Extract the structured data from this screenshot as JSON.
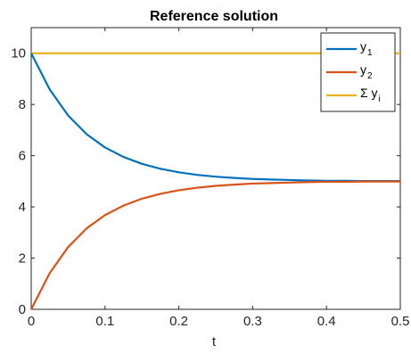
{
  "chart_data": {
    "type": "line",
    "title": "Reference solution",
    "xlabel": "t",
    "ylabel": "",
    "xlim": [
      0,
      0.5
    ],
    "ylim": [
      0,
      11
    ],
    "xticks": [
      0,
      0.1,
      0.2,
      0.3,
      0.4,
      0.5
    ],
    "xtick_labels": [
      "0",
      "0.1",
      "0.2",
      "0.3",
      "0.4",
      "0.5"
    ],
    "yticks": [
      0,
      2,
      4,
      6,
      8,
      10
    ],
    "ytick_labels": [
      "0",
      "2",
      "4",
      "6",
      "8",
      "10"
    ],
    "grid": false,
    "legend_position": "top-right",
    "x": [
      0,
      0.025,
      0.05,
      0.075,
      0.1,
      0.125,
      0.15,
      0.175,
      0.2,
      0.225,
      0.25,
      0.275,
      0.3,
      0.325,
      0.35,
      0.375,
      0.4,
      0.425,
      0.45,
      0.475,
      0.5
    ],
    "series": [
      {
        "name": "y1",
        "legend_main": "y",
        "legend_sub": "1",
        "color": "#0072BD",
        "values": [
          10,
          8.59,
          7.57,
          6.84,
          6.32,
          5.95,
          5.68,
          5.49,
          5.35,
          5.25,
          5.18,
          5.13,
          5.09,
          5.07,
          5.05,
          5.03,
          5.02,
          5.02,
          5.01,
          5.01,
          5.01
        ]
      },
      {
        "name": "y2",
        "legend_main": "y",
        "legend_sub": "2",
        "color": "#D95319",
        "values": [
          0,
          1.41,
          2.43,
          3.16,
          3.68,
          4.05,
          4.32,
          4.51,
          4.65,
          4.75,
          4.82,
          4.87,
          4.91,
          4.93,
          4.95,
          4.97,
          4.98,
          4.98,
          4.99,
          4.99,
          4.99
        ]
      },
      {
        "name": "Σ yi",
        "legend_main": "Σ y",
        "legend_sub": "i",
        "color": "#EDB120",
        "values": [
          10,
          10,
          10,
          10,
          10,
          10,
          10,
          10,
          10,
          10,
          10,
          10,
          10,
          10,
          10,
          10,
          10,
          10,
          10,
          10,
          10
        ]
      }
    ]
  }
}
